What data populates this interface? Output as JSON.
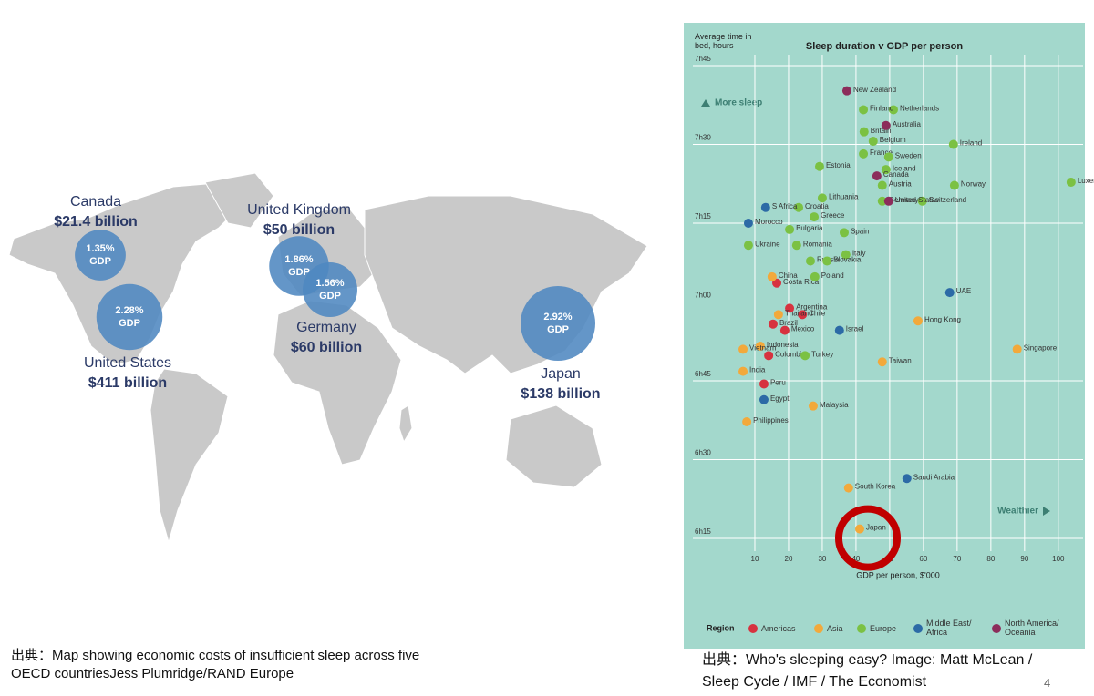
{
  "map": {
    "bubble_unit": "GDP",
    "bubbles": [
      {
        "name": "Canada",
        "cost": "$21.4 billion",
        "value": 1.35,
        "value_label": "1.35%"
      },
      {
        "name": "United Kingdom",
        "cost": "$50 billion",
        "value": 1.86,
        "value_label": "1.86%"
      },
      {
        "name": "United States",
        "cost": "$411 billion",
        "value": 2.28,
        "value_label": "2.28%"
      },
      {
        "name": "Germany",
        "cost": "$60 billion",
        "value": 1.56,
        "value_label": "1.56%"
      },
      {
        "name": "Japan",
        "cost": "$138 billion",
        "value": 2.92,
        "value_label": "2.92%"
      }
    ]
  },
  "chart_data": {
    "type": "scatter",
    "title": "Sleep duration v GDP per person",
    "y_label": "Average time in bed, hours",
    "x_label": "GDP per person, $'000",
    "annotations": [
      "More sleep",
      "Wealthier"
    ],
    "legend_title": "Region",
    "grid": true,
    "xlim": [
      0,
      106
    ],
    "xticks": [
      10,
      20,
      30,
      40,
      50,
      60,
      70,
      80,
      90,
      100
    ],
    "ylim": [
      6.2,
      7.8
    ],
    "yticks": [
      {
        "value": 6.25,
        "label": "6h15"
      },
      {
        "value": 6.5,
        "label": "6h30"
      },
      {
        "value": 6.75,
        "label": "6h45"
      },
      {
        "value": 7,
        "label": "7h00"
      },
      {
        "value": 7.25,
        "label": "7h15"
      },
      {
        "value": 7.5,
        "label": "7h30"
      },
      {
        "value": 7.75,
        "label": "7h45"
      }
    ],
    "series": [
      {
        "name": "Americas",
        "color": "#d7323f",
        "labels": [
          "Costa Rica",
          "Argentina",
          "Chile",
          "Brazil",
          "Mexico",
          "Colombia",
          "Peru"
        ],
        "x": [
          16.5,
          20.3,
          24.1,
          15.4,
          18.9,
          14.1,
          12.7
        ],
        "values": [
          7.06,
          6.98,
          6.96,
          6.93,
          6.91,
          6.83,
          6.74
        ]
      },
      {
        "name": "Asia",
        "color": "#f2a93b",
        "labels": [
          "China",
          "Thailand",
          "Hong Kong",
          "Indonesia",
          "Vietnam",
          "Singapore",
          "Taiwan",
          "India",
          "Malaysia",
          "Philippines",
          "South Korea",
          "Japan"
        ],
        "x": [
          15.1,
          17.0,
          58.4,
          11.6,
          6.5,
          87.8,
          47.8,
          6.5,
          27.3,
          7.6,
          37.8,
          41.1
        ],
        "values": [
          7.08,
          6.96,
          6.94,
          6.86,
          6.85,
          6.85,
          6.81,
          6.78,
          6.67,
          6.62,
          6.41,
          6.28
        ]
      },
      {
        "name": "Europe",
        "color": "#7bc143",
        "labels": [
          "Netherlands",
          "Finland",
          "Britain",
          "Belgium",
          "Ireland",
          "France",
          "Sweden",
          "Estonia",
          "Iceland",
          "Norway",
          "Luxembourg",
          "Austria",
          "Lithuania",
          "Croatia",
          "Germany",
          "Switzerland",
          "Greece",
          "Bulgaria",
          "Spain",
          "Romania",
          "Ukraine",
          "Italy",
          "Russia",
          "Slovakia",
          "Poland",
          "Turkey"
        ],
        "x": [
          51.1,
          42.2,
          42.4,
          45.1,
          68.9,
          42.2,
          49.7,
          29.2,
          48.9,
          69.2,
          103.8,
          47.8,
          30.0,
          23.0,
          47.8,
          59.7,
          27.6,
          20.3,
          36.5,
          22.4,
          8.1,
          37.0,
          26.5,
          31.4,
          27.8,
          24.9
        ],
        "values": [
          7.61,
          7.61,
          7.54,
          7.51,
          7.5,
          7.47,
          7.46,
          7.43,
          7.42,
          7.37,
          7.38,
          7.37,
          7.33,
          7.3,
          7.32,
          7.32,
          7.27,
          7.23,
          7.22,
          7.18,
          7.18,
          7.15,
          7.13,
          7.13,
          7.08,
          6.83
        ]
      },
      {
        "name": "Middle East/ Africa",
        "color": "#2c6aa6",
        "labels": [
          "S Africa",
          "Morocco",
          "UAE",
          "Israel",
          "Egypt",
          "Saudi Arabia"
        ],
        "x": [
          13.2,
          8.1,
          67.8,
          35.1,
          12.7,
          55.1
        ],
        "values": [
          7.3,
          7.25,
          7.03,
          6.91,
          6.69,
          6.44
        ]
      },
      {
        "name": "North America/ Oceania",
        "color": "#8c2d5b",
        "labels": [
          "New Zealand",
          "Australia",
          "Canada",
          "United States"
        ],
        "x": [
          37.3,
          48.9,
          46.2,
          49.7
        ],
        "values": [
          7.67,
          7.56,
          7.4,
          7.32
        ]
      }
    ]
  },
  "captions": {
    "left": "出典：Map showing economic costs of insufficient sleep across five OECD countriesJess Plumridge/RAND Europe",
    "right": "出典：Who's sleeping easy? Image: Matt McLean / Sleep Cycle / IMF / The Economist",
    "page_number": "4"
  }
}
